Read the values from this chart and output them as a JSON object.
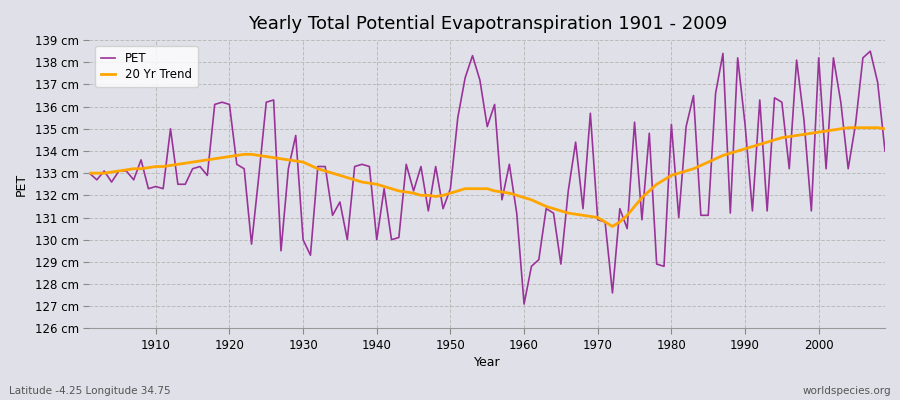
{
  "title": "Yearly Total Potential Evapotranspiration 1901 - 2009",
  "xlabel": "Year",
  "ylabel": "PET",
  "subtitle_left": "Latitude -4.25 Longitude 34.75",
  "subtitle_right": "worldspecies.org",
  "pet_color": "#993399",
  "trend_color": "#FFA500",
  "background_color": "#e0e0e8",
  "plot_bg_color": "#e0e0e8",
  "ylim": [
    126,
    139
  ],
  "ytick_step": 1,
  "years": [
    1901,
    1902,
    1903,
    1904,
    1905,
    1906,
    1907,
    1908,
    1909,
    1910,
    1911,
    1912,
    1913,
    1914,
    1915,
    1916,
    1917,
    1918,
    1919,
    1920,
    1921,
    1922,
    1923,
    1924,
    1925,
    1926,
    1927,
    1928,
    1929,
    1930,
    1931,
    1932,
    1933,
    1934,
    1935,
    1936,
    1937,
    1938,
    1939,
    1940,
    1941,
    1942,
    1943,
    1944,
    1945,
    1946,
    1947,
    1948,
    1949,
    1950,
    1951,
    1952,
    1953,
    1954,
    1955,
    1956,
    1957,
    1958,
    1959,
    1960,
    1961,
    1962,
    1963,
    1964,
    1965,
    1966,
    1967,
    1968,
    1969,
    1970,
    1971,
    1972,
    1973,
    1974,
    1975,
    1976,
    1977,
    1978,
    1979,
    1980,
    1981,
    1982,
    1983,
    1984,
    1985,
    1986,
    1987,
    1988,
    1989,
    1990,
    1991,
    1992,
    1993,
    1994,
    1995,
    1996,
    1997,
    1998,
    1999,
    2000,
    2001,
    2002,
    2003,
    2004,
    2005,
    2006,
    2007,
    2008,
    2009
  ],
  "pet_values": [
    133.0,
    132.7,
    133.1,
    132.6,
    133.1,
    133.1,
    132.7,
    133.6,
    132.3,
    132.4,
    132.3,
    135.0,
    132.5,
    132.5,
    133.2,
    133.3,
    132.9,
    136.1,
    136.2,
    136.1,
    133.4,
    133.2,
    129.8,
    132.9,
    136.2,
    136.3,
    129.5,
    133.2,
    134.7,
    130.0,
    129.3,
    133.3,
    133.3,
    131.1,
    131.7,
    130.0,
    133.3,
    133.4,
    133.3,
    130.0,
    132.3,
    130.0,
    130.1,
    133.4,
    132.2,
    133.3,
    131.3,
    133.3,
    131.4,
    132.3,
    135.5,
    137.3,
    138.3,
    137.2,
    135.1,
    136.1,
    131.8,
    133.4,
    131.2,
    127.1,
    128.8,
    129.1,
    131.4,
    131.2,
    128.9,
    132.2,
    134.4,
    131.4,
    135.7,
    130.9,
    130.8,
    127.6,
    131.4,
    130.5,
    135.3,
    130.9,
    134.8,
    128.9,
    128.8,
    135.2,
    131.0,
    135.1,
    136.5,
    131.1,
    131.1,
    136.6,
    138.4,
    131.2,
    138.2,
    135.2,
    131.3,
    136.3,
    131.3,
    136.4,
    136.2,
    133.2,
    138.1,
    135.4,
    131.3,
    138.2,
    133.2,
    138.2,
    136.2,
    133.2,
    135.2,
    138.2,
    138.5,
    137.1,
    134.0
  ],
  "trend_values": [
    133.0,
    133.0,
    133.0,
    133.05,
    133.1,
    133.15,
    133.2,
    133.2,
    133.25,
    133.3,
    133.3,
    133.35,
    133.4,
    133.45,
    133.5,
    133.55,
    133.6,
    133.65,
    133.7,
    133.75,
    133.8,
    133.85,
    133.85,
    133.8,
    133.75,
    133.7,
    133.65,
    133.6,
    133.55,
    133.5,
    133.35,
    133.2,
    133.1,
    133.0,
    132.9,
    132.8,
    132.7,
    132.6,
    132.55,
    132.5,
    132.4,
    132.3,
    132.2,
    132.15,
    132.1,
    132.0,
    132.0,
    131.95,
    132.0,
    132.1,
    132.2,
    132.3,
    132.3,
    132.3,
    132.3,
    132.2,
    132.15,
    132.1,
    132.0,
    131.9,
    131.8,
    131.65,
    131.5,
    131.4,
    131.3,
    131.2,
    131.15,
    131.1,
    131.05,
    131.0,
    130.8,
    130.6,
    130.8,
    131.1,
    131.5,
    131.9,
    132.2,
    132.5,
    132.7,
    132.9,
    133.0,
    133.1,
    133.2,
    133.35,
    133.5,
    133.65,
    133.8,
    133.9,
    134.0,
    134.1,
    134.2,
    134.3,
    134.4,
    134.5,
    134.6,
    134.65,
    134.7,
    134.75,
    134.8,
    134.85,
    134.9,
    134.95,
    135.0,
    135.05,
    135.05,
    135.05,
    135.05,
    135.05,
    135.0
  ]
}
